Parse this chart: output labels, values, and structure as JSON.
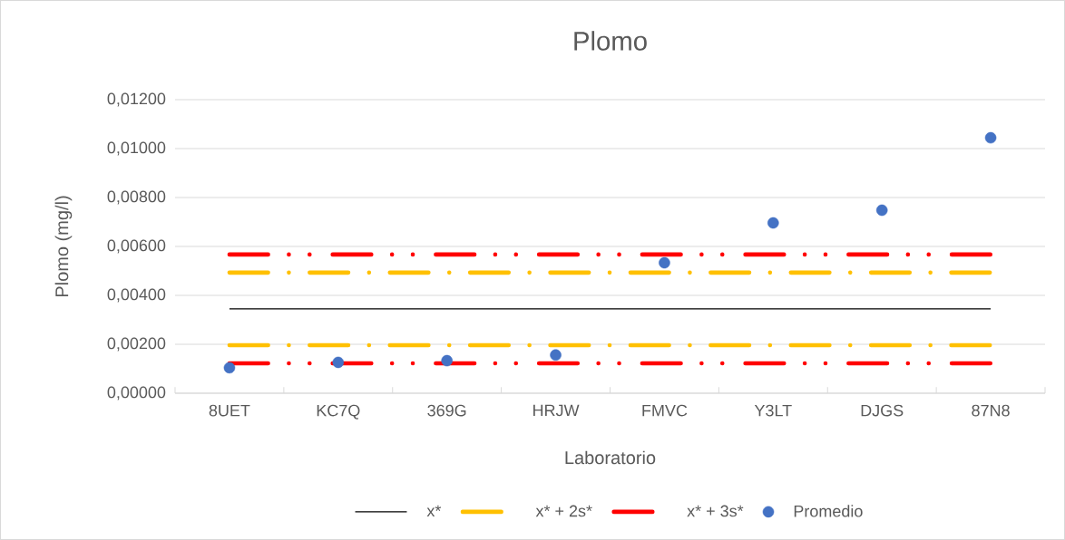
{
  "chart_data": {
    "type": "line",
    "title": "Plomo",
    "xlabel": "Laboratorio",
    "ylabel": "Plomo (mg/l)",
    "categories": [
      "8UET",
      "KC7Q",
      "369G",
      "HRJW",
      "FMVC",
      "Y3LT",
      "DJGS",
      "87N8"
    ],
    "series": [
      {
        "name": "x*",
        "color": "#000000",
        "line_style": "solid",
        "values": [
          0.00345,
          0.00345,
          0.00345,
          0.00345,
          0.00345,
          0.00345,
          0.00345,
          0.00345
        ]
      },
      {
        "name": "x* + 2s*",
        "color": "#ffc000",
        "line_style": "dashdot",
        "values": [
          0.00493,
          0.00493,
          0.00493,
          0.00493,
          0.00493,
          0.00493,
          0.00493,
          0.00493
        ]
      },
      {
        "name": "x* + 3s*",
        "color": "#ff0000",
        "line_style": "dashdotdot",
        "values": [
          0.00567,
          0.00567,
          0.00567,
          0.00567,
          0.00567,
          0.00567,
          0.00567,
          0.00567
        ]
      },
      {
        "color": "#ffc000",
        "line_style": "dashdot",
        "values": [
          0.00196,
          0.00196,
          0.00196,
          0.00196,
          0.00196,
          0.00196,
          0.00196,
          0.00196
        ]
      },
      {
        "color": "#ff0000",
        "line_style": "dashdotdot",
        "values": [
          0.00122,
          0.00122,
          0.00122,
          0.00122,
          0.00122,
          0.00122,
          0.00122,
          0.00122
        ]
      },
      {
        "name": "Promedio",
        "type": "scatter",
        "marker": "circle",
        "color": "#4472c4",
        "values": [
          0.00104,
          0.00126,
          0.00133,
          0.00156,
          0.00533,
          0.00696,
          0.00748,
          0.01044
        ]
      }
    ],
    "ylim": [
      0,
      0.012
    ],
    "yticks": [
      {
        "value": 0,
        "label": "0,00000"
      },
      {
        "value": 0.002,
        "label": "0,00200"
      },
      {
        "value": 0.004,
        "label": "0,00400"
      },
      {
        "value": 0.006,
        "label": "0,00600"
      },
      {
        "value": 0.008,
        "label": "0,00800"
      },
      {
        "value": 0.01,
        "label": "0,01000"
      },
      {
        "value": 0.012,
        "label": "0,01200"
      }
    ],
    "grid": "y",
    "legend": "bottom"
  }
}
